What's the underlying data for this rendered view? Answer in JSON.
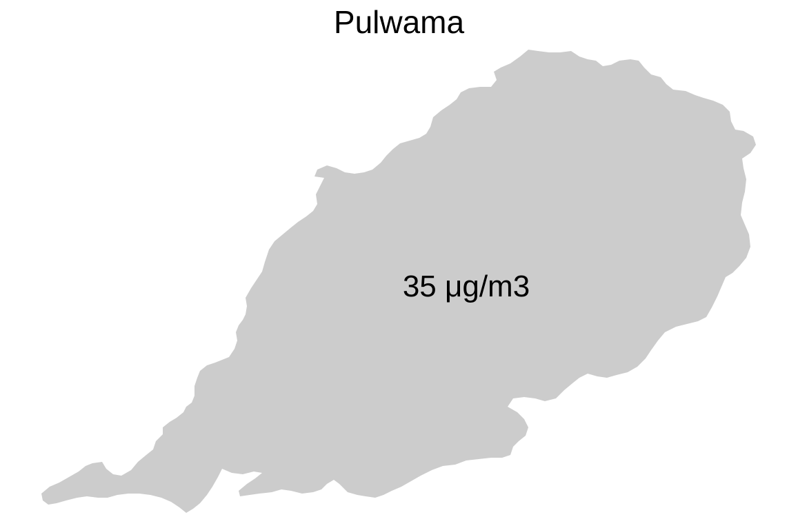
{
  "map": {
    "title": "Pulwama",
    "region": {
      "name": "Pulwama",
      "value_label": "35 μg/m3",
      "fill_color": "#cccccc"
    },
    "background_color": "#ffffff"
  }
}
